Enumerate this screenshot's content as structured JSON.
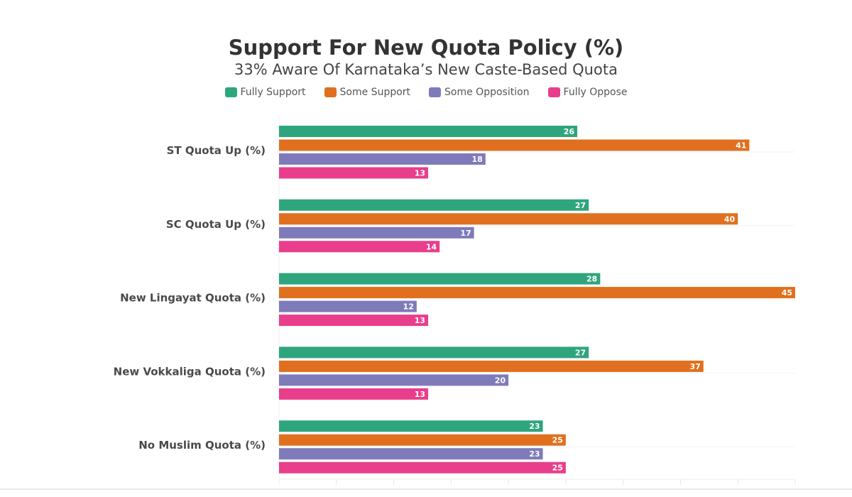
{
  "chart_data": {
    "type": "bar",
    "orientation": "horizontal",
    "title": "Support For New Quota Policy (%)",
    "subtitle": "33% Aware Of Karnataka’s New Caste-Based Quota",
    "xlabel": "",
    "ylabel": "",
    "xlim": [
      0,
      45
    ],
    "x_tick_step": 5,
    "grid": true,
    "legend_position": "top-center",
    "categories": [
      "ST Quota Up (%)",
      "SC Quota Up (%)",
      "New Lingayat Quota (%)",
      "New Vokkaliga Quota (%)",
      "No Muslim Quota (%)"
    ],
    "series": [
      {
        "name": "Fully Support",
        "color": "#2fa57e",
        "values": [
          26,
          27,
          28,
          27,
          23
        ]
      },
      {
        "name": "Some Support",
        "color": "#e0701f",
        "values": [
          41,
          40,
          45,
          37,
          25
        ]
      },
      {
        "name": "Some Opposition",
        "color": "#7f7bba",
        "values": [
          18,
          17,
          12,
          20,
          23
        ]
      },
      {
        "name": "Fully Oppose",
        "color": "#e83e8c",
        "values": [
          13,
          14,
          13,
          13,
          25
        ]
      }
    ]
  }
}
